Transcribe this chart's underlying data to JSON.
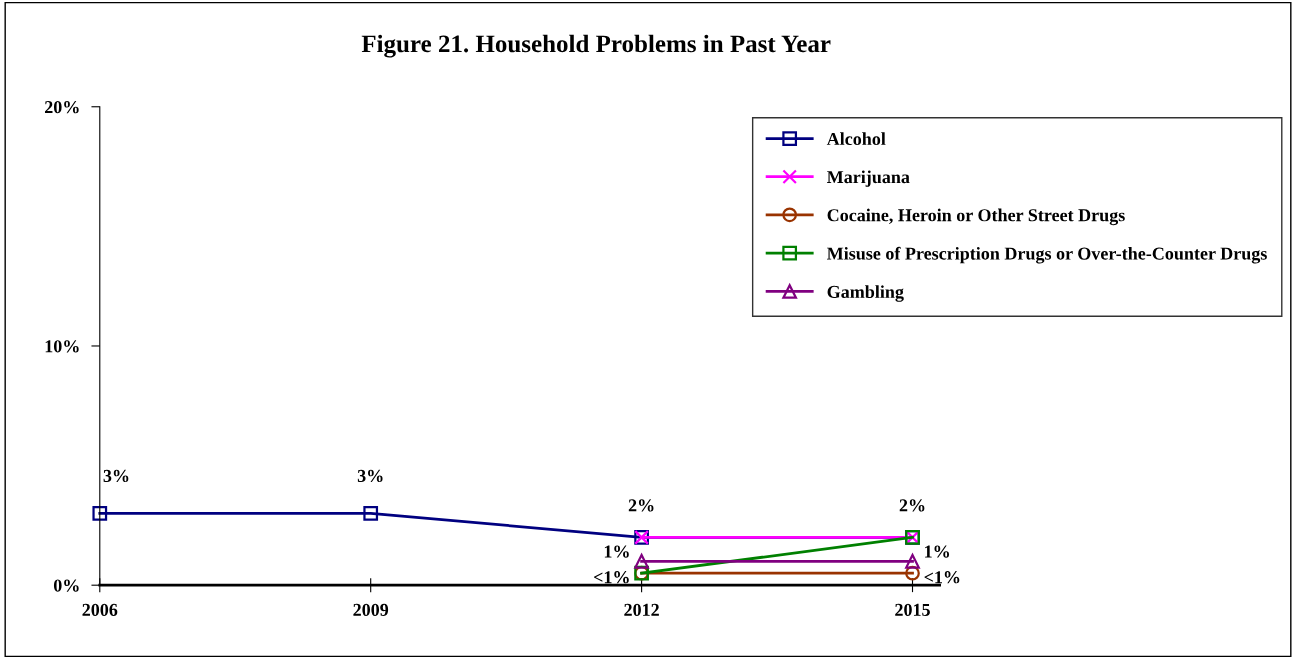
{
  "chart_data": {
    "type": "line",
    "title": "Figure 21. Household Problems in Past Year",
    "categories": [
      "2006",
      "2009",
      "2012",
      "2015"
    ],
    "series": [
      {
        "name": "Alcohol",
        "color": "#000080",
        "marker": "square",
        "values": [
          3,
          3,
          2,
          2
        ],
        "value_labels": [
          "3%",
          "3%",
          "2%",
          "2%"
        ]
      },
      {
        "name": "Marijuana",
        "color": "#ff00ff",
        "marker": "cross",
        "values": [
          null,
          null,
          2,
          2
        ]
      },
      {
        "name": "Cocaine, Heroin or Other Street Drugs",
        "color": "#993300",
        "marker": "circle",
        "values": [
          null,
          null,
          0.5,
          0.5
        ],
        "value_labels": [
          null,
          null,
          "<1%",
          "<1%"
        ]
      },
      {
        "name": "Misuse of Prescription Drugs or Over-the-Counter Drugs",
        "color": "#008000",
        "marker": "square",
        "values": [
          null,
          null,
          0.5,
          2
        ]
      },
      {
        "name": "Gambling",
        "color": "#800080",
        "marker": "triangle",
        "values": [
          null,
          null,
          1,
          1
        ],
        "value_labels": [
          null,
          null,
          "1%",
          "1%"
        ]
      }
    ],
    "ylim": [
      0,
      20
    ],
    "yticks": [
      {
        "value": 0,
        "label": "0%"
      },
      {
        "value": 10,
        "label": "10%"
      },
      {
        "value": 20,
        "label": "20%"
      }
    ],
    "grid": false,
    "legend": "top right"
  }
}
